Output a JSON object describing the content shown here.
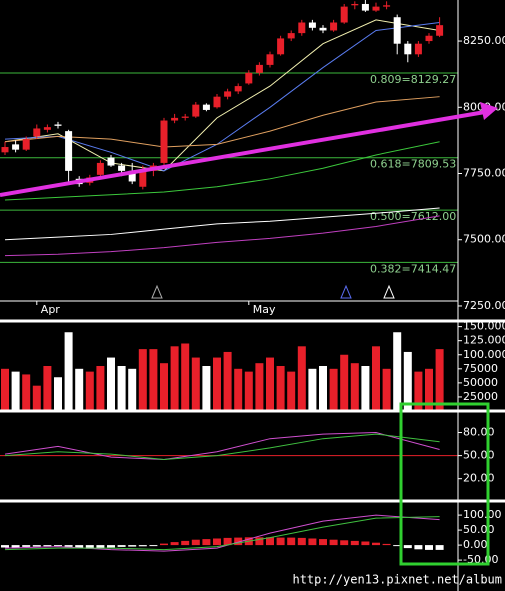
{
  "chart_data": [
    {
      "type": "candlestick",
      "categories": [
        null,
        null,
        null,
        "Apr",
        null,
        null,
        null,
        null,
        null,
        null,
        null,
        null,
        null,
        null,
        null,
        null,
        null,
        null,
        null,
        null,
        null,
        null,
        null,
        "May",
        null,
        null,
        null,
        null,
        null,
        null,
        null,
        null,
        null,
        null,
        null,
        null,
        null,
        null,
        null,
        null,
        null,
        null
      ],
      "open": [
        7830,
        7860,
        7840,
        7890,
        7915,
        7935,
        7910,
        7730,
        7715,
        7745,
        7810,
        7780,
        7760,
        7700,
        7760,
        7790,
        7950,
        7960,
        7965,
        8010,
        8000,
        8040,
        8060,
        8090,
        8130,
        8160,
        8200,
        8260,
        8280,
        8320,
        8300,
        8290,
        8320,
        8385,
        8390,
        8365,
        8380,
        8340,
        8240,
        8200,
        8250,
        8270
      ],
      "high": [
        7870,
        7875,
        7890,
        7935,
        7935,
        7945,
        7915,
        7740,
        7745,
        7800,
        7820,
        7790,
        7790,
        7780,
        7790,
        7960,
        7975,
        7975,
        8020,
        8015,
        8050,
        8070,
        8090,
        8140,
        8170,
        8210,
        8270,
        8290,
        8330,
        8330,
        8310,
        8330,
        8390,
        8400,
        8410,
        8395,
        8400,
        8350,
        8250,
        8250,
        8280,
        8340
      ],
      "low": [
        7820,
        7830,
        7835,
        7880,
        7905,
        7920,
        7720,
        7700,
        7705,
        7740,
        7775,
        7740,
        7710,
        7690,
        7740,
        7780,
        7940,
        7950,
        7960,
        7985,
        7995,
        8030,
        8050,
        8085,
        8120,
        8150,
        8195,
        8250,
        8270,
        8290,
        8280,
        8285,
        8315,
        8370,
        8360,
        8360,
        8370,
        8200,
        8170,
        8190,
        8240,
        8265
      ],
      "close": [
        7850,
        7840,
        7880,
        7920,
        7925,
        7930,
        7760,
        7710,
        7735,
        7790,
        7780,
        7760,
        7720,
        7760,
        7780,
        7950,
        7960,
        7965,
        8010,
        7990,
        8040,
        8060,
        8080,
        8130,
        8160,
        8200,
        8260,
        8280,
        8320,
        8300,
        8290,
        8320,
        8380,
        8390,
        8365,
        8380,
        8385,
        8240,
        8200,
        8240,
        8270,
        8310
      ],
      "up_color": "#e8202a",
      "down_color": "#ffffff",
      "line_x": [
        0,
        5,
        10,
        15,
        20,
        25,
        30,
        35,
        41
      ],
      "lines": [
        {
          "color": "#f2f0b0",
          "values": [
            7870,
            7900,
            7790,
            7760,
            7960,
            8080,
            8240,
            8330,
            8290
          ]
        },
        {
          "color": "#5a7cf0",
          "values": [
            7880,
            7890,
            7830,
            7760,
            7860,
            8000,
            8150,
            8290,
            8320
          ]
        },
        {
          "color": "#e0a060",
          "values": [
            7870,
            7890,
            7880,
            7850,
            7860,
            7910,
            7970,
            8020,
            8040
          ]
        },
        {
          "color": "#3cc83c",
          "values": [
            7650,
            7660,
            7670,
            7680,
            7700,
            7730,
            7770,
            7820,
            7870
          ]
        },
        {
          "color": "#ffffff",
          "values": [
            7500,
            7510,
            7520,
            7540,
            7560,
            7570,
            7585,
            7600,
            7620
          ]
        },
        {
          "color": "#c040c0",
          "values": [
            7440,
            7445,
            7455,
            7470,
            7490,
            7505,
            7525,
            7550,
            7590
          ]
        }
      ],
      "levels": [
        {
          "value": 8129.27,
          "label": "0.809=8129.27"
        },
        {
          "value": 7809.53,
          "label": "0.618=7809.53"
        },
        {
          "value": 7612.0,
          "label": "0.500=7612.00"
        },
        {
          "value": 7414.47,
          "label": "0.382=7414.47"
        }
      ],
      "ylim": [
        7197,
        8405
      ],
      "yticks": [
        {
          "value": 7250,
          "label": "7250.00"
        },
        {
          "value": 7500,
          "label": "7500.00"
        },
        {
          "value": 7750,
          "label": "7750.00"
        },
        {
          "value": 8000,
          "label": "8000.00"
        },
        {
          "value": 8250,
          "label": "8250.00"
        }
      ]
    },
    {
      "type": "bar",
      "values": [
        75000,
        70000,
        65000,
        45000,
        80000,
        60000,
        140000,
        75000,
        70000,
        80000,
        95000,
        80000,
        75000,
        110000,
        110000,
        85000,
        115000,
        120000,
        95000,
        80000,
        95000,
        105000,
        75000,
        70000,
        85000,
        95000,
        80000,
        70000,
        115000,
        75000,
        80000,
        75000,
        100000,
        85000,
        80000,
        115000,
        75000,
        140000,
        105000,
        70000,
        75000,
        110000
      ],
      "ylim": [
        0,
        160000
      ],
      "yticks": [
        {
          "value": 25000,
          "label": "25000"
        },
        {
          "value": 50000,
          "label": "50000"
        },
        {
          "value": 75000,
          "label": "75000"
        },
        {
          "value": 100000,
          "label": "100.000"
        },
        {
          "value": 125000,
          "label": "125.000"
        },
        {
          "value": 150000,
          "label": "150.000"
        }
      ]
    },
    {
      "type": "line",
      "x": [
        0,
        5,
        10,
        15,
        20,
        25,
        30,
        35,
        41
      ],
      "series": [
        {
          "color": "#d050d0",
          "values": [
            52,
            62,
            48,
            45,
            55,
            72,
            78,
            80,
            58
          ]
        },
        {
          "color": "#40c040",
          "values": [
            50,
            55,
            52,
            45,
            50,
            60,
            72,
            78,
            68
          ]
        }
      ],
      "reference": 50,
      "reference_color": "#e8202a",
      "ylim": [
        -9,
        108
      ],
      "yticks": [
        {
          "value": 20,
          "label": "20.00"
        },
        {
          "value": 50,
          "label": "50.00"
        },
        {
          "value": 80,
          "label": "80.00"
        }
      ]
    },
    {
      "type": "macd",
      "x": [
        0,
        5,
        10,
        15,
        20,
        25,
        30,
        35,
        41
      ],
      "series": [
        {
          "color": "#d050d0",
          "values": [
            -10,
            -5,
            -15,
            -20,
            -10,
            40,
            80,
            100,
            85
          ]
        },
        {
          "color": "#40c040",
          "values": [
            -15,
            -10,
            -10,
            -15,
            -5,
            25,
            60,
            90,
            95
          ]
        }
      ],
      "histogram": [
        -8,
        -10,
        -6,
        -5,
        -4,
        -3,
        -6,
        -10,
        -12,
        -10,
        -8,
        -6,
        -5,
        -4,
        -2,
        5,
        10,
        14,
        18,
        20,
        22,
        24,
        25,
        26,
        26,
        26,
        25,
        25,
        24,
        22,
        20,
        18,
        16,
        14,
        12,
        8,
        4,
        -2,
        -10,
        -14,
        -16,
        -16
      ],
      "ylim": [
        -153,
        147
      ],
      "yticks": [
        {
          "value": -50,
          "label": "-50.00"
        },
        {
          "value": 0,
          "label": "0.00"
        },
        {
          "value": 50,
          "label": "50.00"
        },
        {
          "value": 100,
          "label": "100.00"
        }
      ]
    }
  ],
  "watermark": "http://yen13.pixnet.net/album"
}
